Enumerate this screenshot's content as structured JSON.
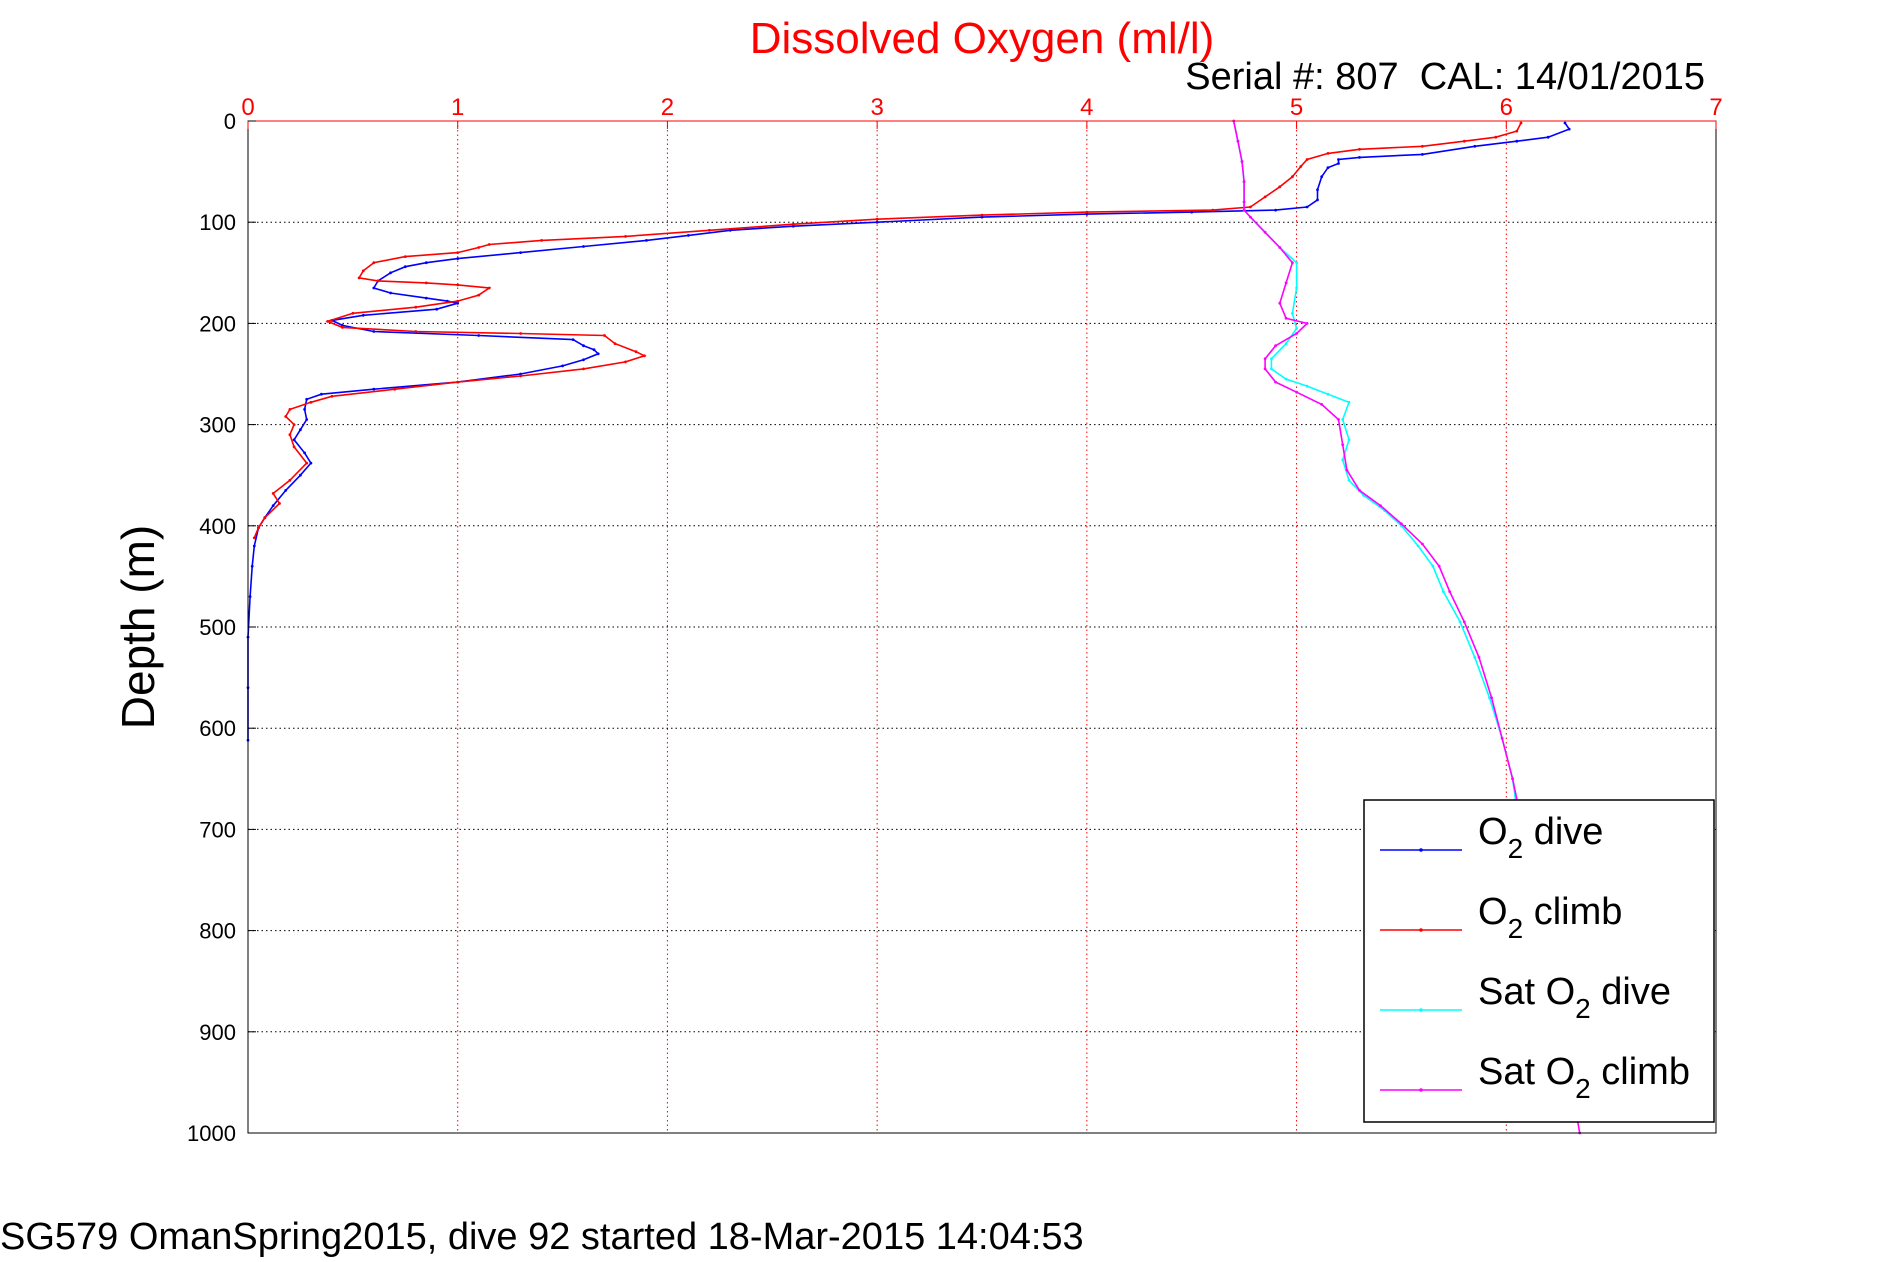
{
  "chart_data": {
    "type": "line",
    "title": "Dissolved Oxygen (ml/l)",
    "subtitle": "Serial #: 807  CAL: 14/01/2015",
    "xlabel": "",
    "ylabel": "Depth (m)",
    "footer": "SG579 OmanSpring2015, dive 92 started 18-Mar-2015 14:04:53",
    "xlim": [
      0,
      7
    ],
    "ylim": [
      0,
      1000
    ],
    "y_inverted": true,
    "x_ticks": [
      0,
      1,
      2,
      3,
      4,
      5,
      6,
      7
    ],
    "y_ticks": [
      0,
      100,
      200,
      300,
      400,
      500,
      600,
      700,
      800,
      900,
      1000
    ],
    "grid": true,
    "legend_position": "bottom-right",
    "colors": {
      "title": "#ff0000",
      "x_ticks": "#ff0000",
      "grid": "#000000"
    },
    "series": [
      {
        "name": "O₂ dive",
        "legend": {
          "main": "O",
          "sub": "2",
          "rest": " dive"
        },
        "color": "#0000ff",
        "points": [
          [
            6.28,
            2
          ],
          [
            6.3,
            8
          ],
          [
            6.2,
            16
          ],
          [
            6.05,
            20
          ],
          [
            5.85,
            25
          ],
          [
            5.6,
            33
          ],
          [
            5.3,
            36
          ],
          [
            5.2,
            38
          ],
          [
            5.2,
            42
          ],
          [
            5.15,
            46
          ],
          [
            5.12,
            55
          ],
          [
            5.1,
            68
          ],
          [
            5.1,
            78
          ],
          [
            5.05,
            85
          ],
          [
            4.9,
            88
          ],
          [
            4.5,
            90
          ],
          [
            4.0,
            92
          ],
          [
            3.5,
            95
          ],
          [
            3.0,
            100
          ],
          [
            2.6,
            104
          ],
          [
            2.3,
            108
          ],
          [
            2.1,
            113
          ],
          [
            1.9,
            118
          ],
          [
            1.6,
            124
          ],
          [
            1.3,
            130
          ],
          [
            1.0,
            136
          ],
          [
            0.85,
            140
          ],
          [
            0.75,
            144
          ],
          [
            0.68,
            150
          ],
          [
            0.62,
            158
          ],
          [
            0.6,
            165
          ],
          [
            0.68,
            170
          ],
          [
            0.85,
            175
          ],
          [
            0.95,
            178
          ],
          [
            1.0,
            180
          ],
          [
            0.9,
            186
          ],
          [
            0.55,
            192
          ],
          [
            0.4,
            197
          ],
          [
            0.45,
            202
          ],
          [
            0.6,
            208
          ],
          [
            1.1,
            212
          ],
          [
            1.55,
            216
          ],
          [
            1.6,
            222
          ],
          [
            1.65,
            226
          ],
          [
            1.67,
            230
          ],
          [
            1.6,
            236
          ],
          [
            1.5,
            242
          ],
          [
            1.3,
            250
          ],
          [
            1.0,
            258
          ],
          [
            0.6,
            265
          ],
          [
            0.35,
            270
          ],
          [
            0.28,
            275
          ],
          [
            0.27,
            285
          ],
          [
            0.28,
            295
          ],
          [
            0.25,
            305
          ],
          [
            0.22,
            315
          ],
          [
            0.27,
            328
          ],
          [
            0.3,
            338
          ],
          [
            0.25,
            350
          ],
          [
            0.18,
            365
          ],
          [
            0.12,
            380
          ],
          [
            0.08,
            392
          ],
          [
            0.05,
            402
          ],
          [
            0.03,
            420
          ],
          [
            0.02,
            440
          ],
          [
            0.01,
            470
          ],
          [
            0.0,
            510
          ],
          [
            0.0,
            560
          ],
          [
            0.0,
            612
          ]
        ]
      },
      {
        "name": "O₂ climb",
        "legend": {
          "main": "O",
          "sub": "2",
          "rest": " climb"
        },
        "color": "#ff0000",
        "points": [
          [
            6.07,
            2
          ],
          [
            6.05,
            10
          ],
          [
            5.95,
            16
          ],
          [
            5.8,
            20
          ],
          [
            5.6,
            25
          ],
          [
            5.3,
            28
          ],
          [
            5.15,
            32
          ],
          [
            5.05,
            38
          ],
          [
            5.02,
            45
          ],
          [
            4.98,
            55
          ],
          [
            4.92,
            65
          ],
          [
            4.85,
            75
          ],
          [
            4.78,
            85
          ],
          [
            4.6,
            88
          ],
          [
            4.0,
            90
          ],
          [
            3.5,
            93
          ],
          [
            3.0,
            97
          ],
          [
            2.6,
            102
          ],
          [
            2.2,
            108
          ],
          [
            1.8,
            114
          ],
          [
            1.4,
            118
          ],
          [
            1.15,
            122
          ],
          [
            1.1,
            125
          ],
          [
            1.0,
            130
          ],
          [
            0.75,
            134
          ],
          [
            0.6,
            140
          ],
          [
            0.55,
            148
          ],
          [
            0.53,
            155
          ],
          [
            0.62,
            158
          ],
          [
            0.85,
            160
          ],
          [
            1.0,
            162
          ],
          [
            1.15,
            165
          ],
          [
            1.1,
            172
          ],
          [
            1.0,
            178
          ],
          [
            0.8,
            184
          ],
          [
            0.5,
            190
          ],
          [
            0.38,
            198
          ],
          [
            0.45,
            204
          ],
          [
            0.8,
            208
          ],
          [
            1.3,
            210
          ],
          [
            1.7,
            212
          ],
          [
            1.75,
            220
          ],
          [
            1.85,
            228
          ],
          [
            1.89,
            232
          ],
          [
            1.8,
            238
          ],
          [
            1.6,
            245
          ],
          [
            1.3,
            252
          ],
          [
            1.0,
            258
          ],
          [
            0.7,
            265
          ],
          [
            0.4,
            272
          ],
          [
            0.3,
            278
          ],
          [
            0.2,
            285
          ],
          [
            0.18,
            292
          ],
          [
            0.22,
            300
          ],
          [
            0.2,
            310
          ],
          [
            0.22,
            322
          ],
          [
            0.28,
            338
          ],
          [
            0.2,
            355
          ],
          [
            0.12,
            368
          ],
          [
            0.15,
            378
          ],
          [
            0.08,
            392
          ],
          [
            0.05,
            402
          ],
          [
            0.03,
            412
          ]
        ]
      },
      {
        "name": "Sat O₂ dive",
        "legend": {
          "main": "Sat O",
          "sub": "2",
          "rest": " dive"
        },
        "color": "#00ffff",
        "points": [
          [
            4.7,
            0
          ],
          [
            4.72,
            20
          ],
          [
            4.74,
            40
          ],
          [
            4.75,
            60
          ],
          [
            4.75,
            80
          ],
          [
            4.75,
            88
          ],
          [
            4.78,
            95
          ],
          [
            4.85,
            110
          ],
          [
            4.92,
            125
          ],
          [
            5.0,
            140
          ],
          [
            5.0,
            165
          ],
          [
            4.98,
            190
          ],
          [
            5.0,
            205
          ],
          [
            4.95,
            220
          ],
          [
            4.88,
            235
          ],
          [
            4.88,
            245
          ],
          [
            4.95,
            255
          ],
          [
            5.05,
            262
          ],
          [
            5.15,
            270
          ],
          [
            5.25,
            278
          ],
          [
            5.22,
            295
          ],
          [
            5.25,
            315
          ],
          [
            5.22,
            335
          ],
          [
            5.25,
            355
          ],
          [
            5.32,
            370
          ],
          [
            5.42,
            385
          ],
          [
            5.5,
            400
          ],
          [
            5.58,
            420
          ],
          [
            5.65,
            440
          ],
          [
            5.7,
            465
          ],
          [
            5.78,
            495
          ],
          [
            5.85,
            530
          ],
          [
            5.92,
            570
          ],
          [
            5.98,
            610
          ],
          [
            6.03,
            650
          ],
          [
            6.05,
            680
          ]
        ]
      },
      {
        "name": "Sat O₂ climb",
        "legend": {
          "main": "Sat O",
          "sub": "2",
          "rest": " climb"
        },
        "color": "#ff00ff",
        "points": [
          [
            4.7,
            0
          ],
          [
            4.72,
            20
          ],
          [
            4.74,
            40
          ],
          [
            4.75,
            60
          ],
          [
            4.75,
            80
          ],
          [
            4.75,
            88
          ],
          [
            4.78,
            95
          ],
          [
            4.85,
            110
          ],
          [
            4.92,
            125
          ],
          [
            4.98,
            140
          ],
          [
            4.95,
            160
          ],
          [
            4.92,
            180
          ],
          [
            4.95,
            195
          ],
          [
            5.05,
            200
          ],
          [
            5.0,
            210
          ],
          [
            4.9,
            222
          ],
          [
            4.85,
            235
          ],
          [
            4.85,
            245
          ],
          [
            4.9,
            258
          ],
          [
            5.0,
            268
          ],
          [
            5.12,
            280
          ],
          [
            5.2,
            295
          ],
          [
            5.22,
            320
          ],
          [
            5.24,
            345
          ],
          [
            5.3,
            365
          ],
          [
            5.4,
            380
          ],
          [
            5.5,
            398
          ],
          [
            5.6,
            418
          ],
          [
            5.68,
            440
          ],
          [
            5.73,
            465
          ],
          [
            5.8,
            495
          ],
          [
            5.87,
            530
          ],
          [
            5.93,
            570
          ],
          [
            5.98,
            610
          ],
          [
            6.03,
            650
          ],
          [
            6.08,
            700
          ],
          [
            6.15,
            780
          ],
          [
            6.22,
            860
          ],
          [
            6.3,
            940
          ],
          [
            6.35,
            1000
          ]
        ]
      }
    ]
  }
}
